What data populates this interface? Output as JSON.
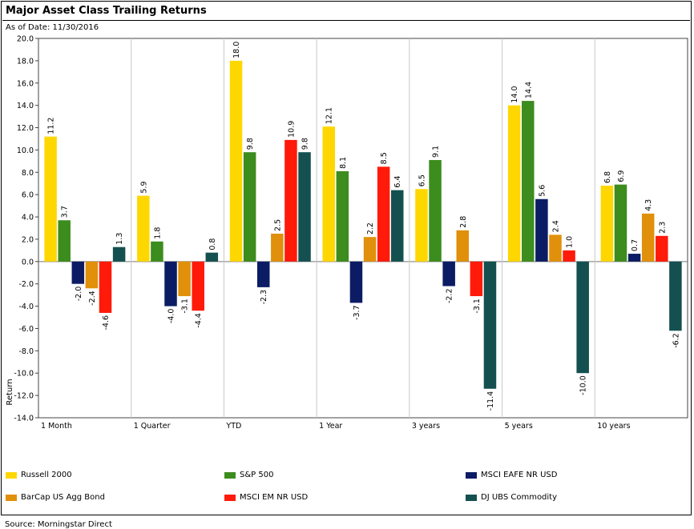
{
  "title": "Major Asset Class Trailing Returns",
  "as_of": "As of Date: 11/30/2016",
  "source": "Source: Morningstar Direct",
  "chart_data": {
    "type": "bar",
    "title": "Major Asset Class Trailing Returns",
    "xlabel": "",
    "ylabel": "Return",
    "ylim": [
      -14,
      20
    ],
    "ytick_step": 2,
    "grid": "vertical-category-separators",
    "legend_position": "bottom",
    "categories": [
      "1 Month",
      "1 Quarter",
      "YTD",
      "1 Year",
      "3 years",
      "5 years",
      "10 years"
    ],
    "series": [
      {
        "name": "Russell 2000",
        "color": "#ffd700",
        "values": [
          11.2,
          5.9,
          18.0,
          12.1,
          6.5,
          14.0,
          6.8
        ]
      },
      {
        "name": "S&P 500",
        "color": "#3c8c1e",
        "values": [
          3.7,
          1.8,
          9.8,
          8.1,
          9.1,
          14.4,
          6.9
        ]
      },
      {
        "name": "MSCI EAFE NR USD",
        "color": "#0c1c64",
        "values": [
          -2.0,
          -4.0,
          -2.3,
          -3.7,
          -2.2,
          5.6,
          0.7
        ]
      },
      {
        "name": "BarCap US Agg Bond",
        "color": "#e0900a",
        "values": [
          -2.4,
          -3.1,
          2.5,
          2.2,
          2.8,
          2.4,
          4.3
        ]
      },
      {
        "name": "MSCI EM NR USD",
        "color": "#ff1a0a",
        "values": [
          -4.6,
          -4.4,
          10.9,
          8.5,
          -3.1,
          1.0,
          2.3
        ]
      },
      {
        "name": "DJ UBS Commodity",
        "color": "#145050",
        "values": [
          1.3,
          0.8,
          9.8,
          6.4,
          -11.4,
          -10.0,
          -6.2
        ]
      }
    ]
  }
}
